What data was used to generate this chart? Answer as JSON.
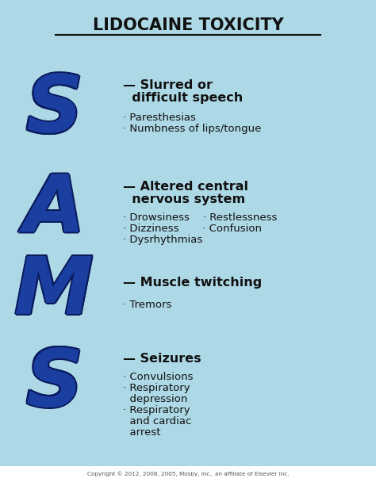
{
  "title": "LIDOCAINE TOXICITY",
  "background_color": "#add8e6",
  "title_color": "#111111",
  "letter_color": "#1a3fa0",
  "text_color": "#111111",
  "copyright": "Copyright © 2012, 2008, 2005, Mosby, Inc., an affiliate of Elsevier Inc.",
  "copyright_bg": "#ffffff",
  "sections": [
    {
      "letter": "S",
      "heading_line1": "— Slurred or",
      "heading_line2": "  difficult speech",
      "bullets": [
        "· Paresthesias",
        "· Numbness of lips/tongue"
      ]
    },
    {
      "letter": "A",
      "heading_line1": "— Altered central",
      "heading_line2": "  nervous system",
      "bullets": [
        "· Drowsiness    · Restlessness",
        "· Dizziness       · Confusion",
        "· Dysrhythmias"
      ]
    },
    {
      "letter": "M",
      "heading_line1": "— Muscle twitching",
      "heading_line2": "",
      "bullets": [
        "· Tremors"
      ]
    },
    {
      "letter": "S",
      "heading_line1": "— Seizures",
      "heading_line2": "",
      "bullets": [
        "· Convulsions",
        "· Respiratory",
        "  depression",
        "· Respiratory",
        "  and cardiac",
        "  arrest"
      ]
    }
  ]
}
